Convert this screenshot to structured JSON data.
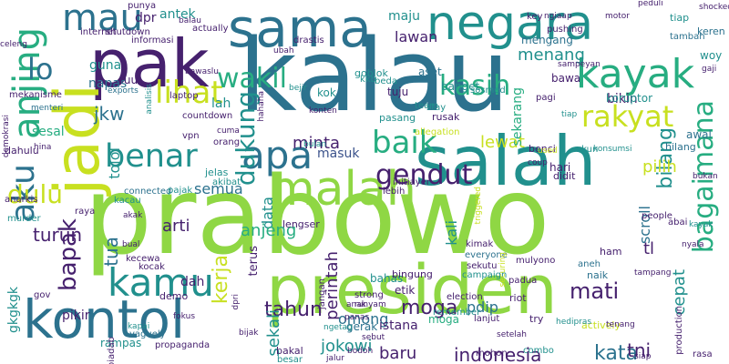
{
  "palette": {
    "purple": "#46216e",
    "indigo": "#3b528b",
    "blue": "#2c728e",
    "teal": "#21908d",
    "green": "#27ad81",
    "lime": "#5ec962",
    "yellow": "#c8e020",
    "bright": "#8fd744"
  },
  "words": [
    {
      "text": "prabowo"
    },
    {
      "text": "kalau"
    },
    {
      "text": "presiden"
    },
    {
      "text": "salah"
    },
    {
      "text": "sama"
    },
    {
      "text": "negara"
    },
    {
      "text": "pak"
    },
    {
      "text": "jadi"
    },
    {
      "text": "kontol"
    },
    {
      "text": "malah"
    },
    {
      "text": "apa"
    },
    {
      "text": "benar"
    },
    {
      "text": "kamu"
    },
    {
      "text": "kayak"
    },
    {
      "text": "baik"
    },
    {
      "text": "mau"
    },
    {
      "text": "anjing"
    },
    {
      "text": "aku"
    },
    {
      "text": "lihat"
    },
    {
      "text": "wakil"
    },
    {
      "text": "rakyat"
    },
    {
      "text": "gendut"
    },
    {
      "text": "bagaimana"
    },
    {
      "text": "kasih"
    },
    {
      "text": "dukung"
    },
    {
      "text": "bapak"
    },
    {
      "text": "dulu"
    },
    {
      "text": "lo"
    },
    {
      "text": "tahun"
    },
    {
      "text": "jokowi"
    },
    {
      "text": "perintah"
    },
    {
      "text": "bilang"
    },
    {
      "text": "indonesia"
    },
    {
      "text": "kata"
    },
    {
      "text": "tni"
    },
    {
      "text": "kerja"
    },
    {
      "text": "semua"
    },
    {
      "text": "turun"
    },
    {
      "text": "masuk"
    },
    {
      "text": "lewat"
    },
    {
      "text": "pilih"
    },
    {
      "text": "menang"
    },
    {
      "text": "mati"
    },
    {
      "text": "omong"
    },
    {
      "text": "moga"
    },
    {
      "text": "pdip"
    },
    {
      "text": "baru"
    },
    {
      "text": "sekali"
    },
    {
      "text": "tua"
    },
    {
      "text": "arti"
    },
    {
      "text": "data"
    },
    {
      "text": "anjeng"
    },
    {
      "text": "lawan"
    },
    {
      "text": "maju"
    },
    {
      "text": "dpr"
    },
    {
      "text": "antek"
    },
    {
      "text": "minta"
    },
    {
      "text": "cepat"
    },
    {
      "text": "scroll"
    },
    {
      "text": "tl"
    },
    {
      "text": "jkw"
    },
    {
      "text": "lah"
    },
    {
      "text": "guna"
    },
    {
      "text": "napas"
    },
    {
      "text": "tolol"
    },
    {
      "text": "bikin"
    },
    {
      "text": "gkgkgk"
    },
    {
      "text": "pikir"
    },
    {
      "text": "sekarang"
    },
    {
      "text": "mengang"
    },
    {
      "text": "kali"
    },
    {
      "text": "istana"
    },
    {
      "text": "gerak"
    },
    {
      "text": "bahas"
    },
    {
      "text": "etik"
    },
    {
      "text": "moga"
    },
    {
      "text": "bawa"
    },
    {
      "text": "koruptor"
    },
    {
      "text": "tuju"
    },
    {
      "text": "aset"
    },
    {
      "text": "ruu"
    },
    {
      "text": "woy"
    },
    {
      "text": "bingung"
    },
    {
      "text": "strong"
    },
    {
      "text": "lengser"
    },
    {
      "text": "demo"
    },
    {
      "text": "jelas"
    },
    {
      "text": "terus"
    },
    {
      "text": "pagi"
    },
    {
      "text": "kok"
    },
    {
      "text": "banget"
    },
    {
      "text": "team"
    },
    {
      "text": "keren"
    },
    {
      "text": "tiap"
    },
    {
      "text": "tambah"
    },
    {
      "text": "hilang"
    },
    {
      "text": "awal"
    },
    {
      "text": "akun"
    },
    {
      "text": "sesal"
    },
    {
      "text": "dah"
    },
    {
      "text": "rampas"
    },
    {
      "text": "vaguely"
    },
    {
      "text": "propaganda"
    },
    {
      "text": "dahulu"
    },
    {
      "text": "anarkis"
    },
    {
      "text": "raya"
    },
    {
      "text": "murder"
    },
    {
      "text": "menteri"
    },
    {
      "text": "celeng"
    },
    {
      "text": "demokrasi"
    },
    {
      "text": "mekanisme"
    },
    {
      "text": "informasi"
    },
    {
      "text": "internet"
    },
    {
      "text": "shutdown"
    },
    {
      "text": "countdown"
    },
    {
      "text": "laptop"
    },
    {
      "text": "exports"
    },
    {
      "text": "analisis"
    },
    {
      "text": "pasang"
    },
    {
      "text": "rusak"
    },
    {
      "text": "stay"
    },
    {
      "text": "sosmed"
    },
    {
      "text": "goblok"
    },
    {
      "text": "kkb"
    },
    {
      "text": "beda"
    },
    {
      "text": "allegation"
    },
    {
      "text": "benci"
    },
    {
      "text": "hari"
    },
    {
      "text": "didit"
    },
    {
      "text": "initiayer"
    },
    {
      "text": "lebih"
    },
    {
      "text": "akibat"
    },
    {
      "text": "connected"
    },
    {
      "text": "kacau"
    },
    {
      "text": "pajak"
    },
    {
      "text": "kimak"
    },
    {
      "text": "everyone"
    },
    {
      "text": "sekutu"
    },
    {
      "text": "campaign"
    },
    {
      "text": "padua"
    },
    {
      "text": "mulyono"
    },
    {
      "text": "kecewa"
    },
    {
      "text": "kocak"
    },
    {
      "text": "aneh"
    },
    {
      "text": "naik"
    },
    {
      "text": "ham"
    },
    {
      "text": "election"
    },
    {
      "text": "riot"
    },
    {
      "text": "remember"
    },
    {
      "text": "bakal"
    },
    {
      "text": "besar"
    },
    {
      "text": "kapai"
    },
    {
      "text": "mohon"
    },
    {
      "text": "combo"
    },
    {
      "text": "production"
    },
    {
      "text": "lanjut"
    },
    {
      "text": "try"
    },
    {
      "text": "rasa"
    },
    {
      "text": "actively"
    },
    {
      "text": "people"
    },
    {
      "text": "abai"
    },
    {
      "text": "gov"
    },
    {
      "text": "biadab"
    },
    {
      "text": "punya"
    },
    {
      "text": "balau"
    },
    {
      "text": "key"
    },
    {
      "text": "ngiaap"
    },
    {
      "text": "pushing"
    },
    {
      "text": "peduli"
    },
    {
      "text": "shocked"
    },
    {
      "text": "motor"
    },
    {
      "text": "actually"
    },
    {
      "text": "bawaslu"
    },
    {
      "text": "hahaha"
    },
    {
      "text": "drastis"
    },
    {
      "text": "ubah"
    },
    {
      "text": "bejir"
    },
    {
      "text": "konten"
    },
    {
      "text": "bulan"
    },
    {
      "text": "sampeyan"
    },
    {
      "text": "jangan"
    },
    {
      "text": "bodoh"
    },
    {
      "text": "vpn"
    },
    {
      "text": "orang"
    },
    {
      "text": "akak"
    },
    {
      "text": "bual"
    },
    {
      "text": "dpri"
    },
    {
      "text": "fokus"
    },
    {
      "text": "tiap"
    },
    {
      "text": "kayak"
    },
    {
      "text": "triggered"
    },
    {
      "text": "securing"
    },
    {
      "text": "runyam"
    },
    {
      "text": "panas"
    },
    {
      "text": "ngetag"
    },
    {
      "text": "anak"
    },
    {
      "text": "jalur"
    },
    {
      "text": "sebut"
    },
    {
      "text": "bijak"
    },
    {
      "text": "hina"
    },
    {
      "text": "coup"
    },
    {
      "text": "used"
    },
    {
      "text": "bukan"
    },
    {
      "text": "hedipras"
    },
    {
      "text": "cuma"
    },
    {
      "text": "konsumsi"
    },
    {
      "text": "nyala"
    },
    {
      "text": "tampang"
    },
    {
      "text": "tenang"
    },
    {
      "text": "setelah"
    },
    {
      "text": "gaji"
    },
    {
      "text": "siap"
    }
  ]
}
